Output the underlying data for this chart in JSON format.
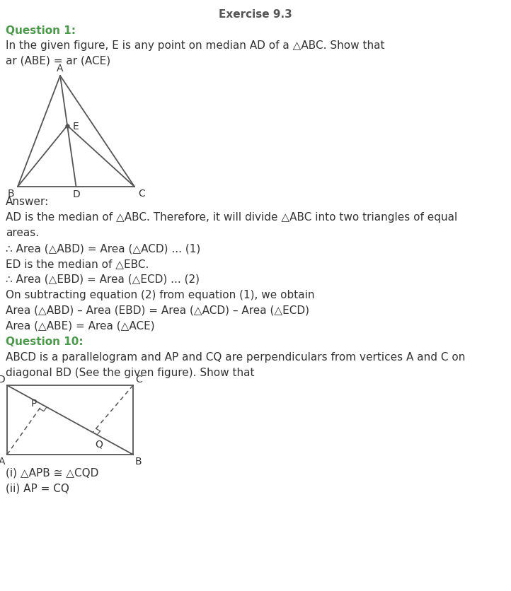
{
  "title": "Exercise 9.3",
  "title_fontsize": 11,
  "title_color": "#555555",
  "bg_color": "#ffffff",
  "text_color": "#333333",
  "question_color": "#4a9a4a",
  "body_fontsize": 11,
  "question1_label": "Question 1:",
  "question1_text1": "In the given figure, E is any point on median AD of a △ABC. Show that",
  "question1_text2": "ar (ABE) = ar (ACE)",
  "answer_label": "Answer:",
  "answer1_line1": "AD is the median of △ABC. Therefore, it will divide △ABC into two triangles of equal",
  "answer1_line2": "areas.",
  "answer1_line3": "∴ Area (△ABD) = Area (△ACD) ... (1)",
  "answer1_line4": "ED is the median of △EBC.",
  "answer1_line5": "∴ Area (△EBD) = Area (△ECD) ... (2)",
  "answer1_line6": "On subtracting equation (2) from equation (1), we obtain",
  "answer1_line7": "Area (△ABD) – Area (EBD) = Area (△ACD) – Area (△ECD)",
  "answer1_line8": "Area (△ABE) = Area (△ACE)",
  "question10_label": "Question 10:",
  "question10_text1": "ABCD is a parallelogram and AP and CQ are perpendiculars from vertices A and C on",
  "question10_text2": "diagonal BD (See the given figure). Show that",
  "last_line1": "(i) △APB ≅ △CQD",
  "last_line2": "(ii) AP = CQ"
}
